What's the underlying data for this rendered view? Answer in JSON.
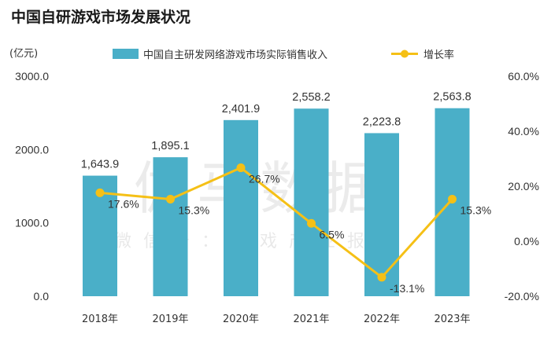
{
  "chart_data": {
    "type": "bar",
    "title": "中国自研游戏市场发展状况",
    "ylabel": "(亿元)",
    "categories": [
      "2018年",
      "2019年",
      "2020年",
      "2021年",
      "2022年",
      "2023年"
    ],
    "series": [
      {
        "name": "中国自主研发网络游戏市场实际销售收入",
        "type": "bar",
        "axis": "left",
        "values": [
          1643.9,
          1895.1,
          2401.9,
          2558.2,
          2223.8,
          2563.8
        ],
        "labels": [
          "1,643.9",
          "1,895.1",
          "2,401.9",
          "2,558.2",
          "2,223.8",
          "2,563.8"
        ],
        "color": "#4aafc8"
      },
      {
        "name": "增长率",
        "type": "line",
        "axis": "right",
        "values": [
          17.6,
          15.3,
          26.7,
          6.5,
          -13.1,
          15.3
        ],
        "labels": [
          "17.6%",
          "15.3%",
          "26.7%",
          "6.5%",
          "-13.1%",
          "15.3%"
        ],
        "color": "#f5c016"
      }
    ],
    "y_left": {
      "min": 0,
      "max": 3000,
      "ticks": [
        0,
        1000,
        2000,
        3000
      ],
      "tick_labels": [
        "0.0",
        "1000.0",
        "2000.0",
        "3000.0"
      ]
    },
    "y_right": {
      "min": -20,
      "max": 60,
      "ticks": [
        -20,
        0,
        20,
        40,
        60
      ],
      "tick_labels": [
        "-20.0%",
        "0.0%",
        "20.0%",
        "40.0%",
        "60.0%"
      ]
    },
    "legend_position": "top",
    "grid": false
  },
  "watermark": {
    "main": "伽马数据",
    "sub": "微信号：游戏产业报告"
  }
}
